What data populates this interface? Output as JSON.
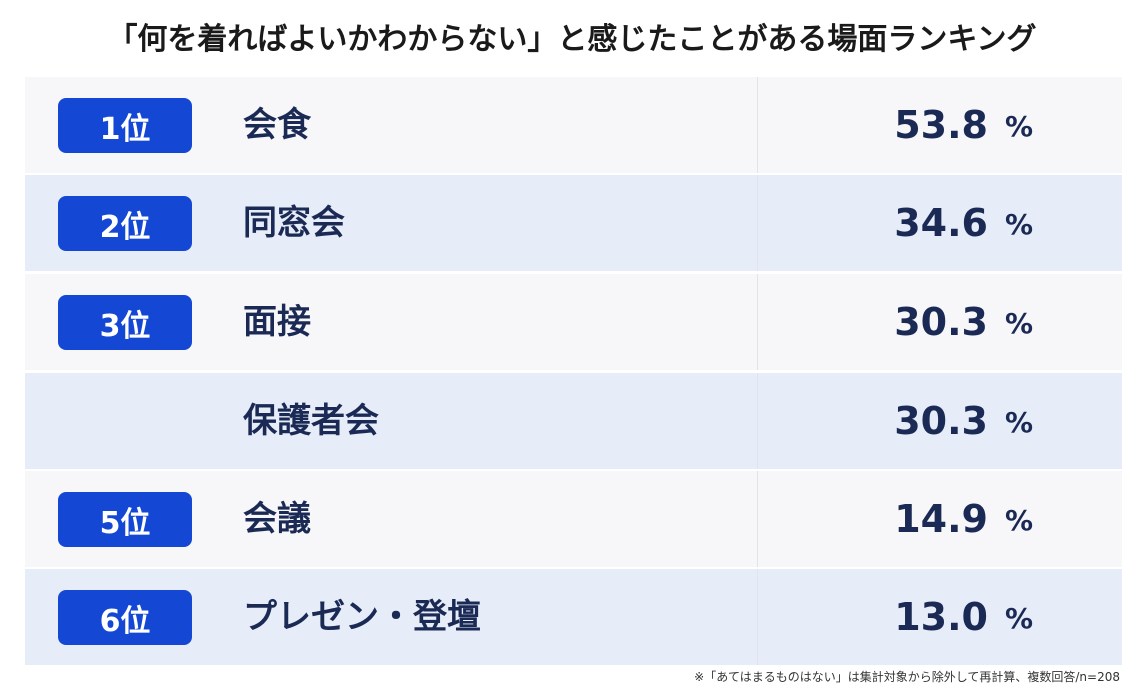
{
  "title": "「何を着ればよいかわからない」と感じたことがある場面ランキング",
  "table": {
    "unit": "%",
    "rows": [
      {
        "rank": "1位",
        "label": "会食",
        "value": "53.8"
      },
      {
        "rank": "2位",
        "label": "同窓会",
        "value": "34.6"
      },
      {
        "rank": "3位",
        "label": "面接",
        "value": "30.3"
      },
      {
        "label": "保護者会",
        "value": "30.3"
      },
      {
        "rank": "5位",
        "label": "会議",
        "value": "14.9"
      },
      {
        "rank": "6位",
        "label": "プレゼン・登壇",
        "value": "13.0"
      }
    ]
  },
  "footnote": "※「あてはまるものはない」は集計対象から除外して再計算、複数回答/n=208"
}
